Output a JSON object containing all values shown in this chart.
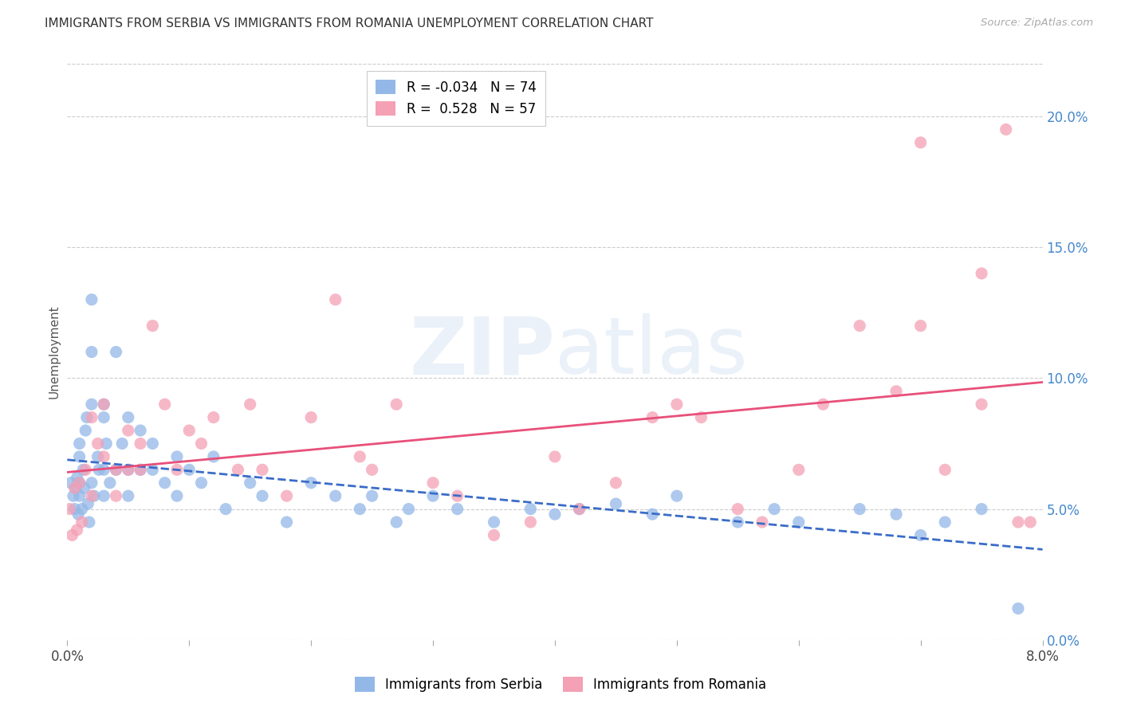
{
  "title": "IMMIGRANTS FROM SERBIA VS IMMIGRANTS FROM ROMANIA UNEMPLOYMENT CORRELATION CHART",
  "source": "Source: ZipAtlas.com",
  "xlabel_label": "Immigrants from Serbia",
  "xlabel_label2": "Immigrants from Romania",
  "ylabel": "Unemployment",
  "serbia_R": -0.034,
  "serbia_N": 74,
  "romania_R": 0.528,
  "romania_N": 57,
  "serbia_color": "#93b8e8",
  "romania_color": "#f4a0b5",
  "serbia_line_color": "#3a6cc8",
  "romania_line_color": "#e8507a",
  "watermark_zip": "ZIP",
  "watermark_atlas": "atlas",
  "background_color": "#ffffff",
  "xlim": [
    0.0,
    0.08
  ],
  "ylim": [
    0.0,
    0.22
  ],
  "y_ticks": [
    0.0,
    0.05,
    0.1,
    0.15,
    0.2
  ],
  "y_tick_labels": [
    "0.0%",
    "5.0%",
    "10.0%",
    "15.0%",
    "20.0%"
  ],
  "x_tick_labels_left": "0.0%",
  "x_tick_labels_right": "8.0%",
  "serbia_scatter_x": [
    0.0003,
    0.0005,
    0.0006,
    0.0007,
    0.0008,
    0.0009,
    0.001,
    0.001,
    0.001,
    0.001,
    0.0012,
    0.0013,
    0.0014,
    0.0015,
    0.0016,
    0.0017,
    0.0018,
    0.002,
    0.002,
    0.002,
    0.002,
    0.0022,
    0.0025,
    0.0026,
    0.003,
    0.003,
    0.003,
    0.003,
    0.0032,
    0.0035,
    0.004,
    0.004,
    0.0045,
    0.005,
    0.005,
    0.005,
    0.006,
    0.006,
    0.007,
    0.007,
    0.008,
    0.009,
    0.009,
    0.01,
    0.011,
    0.012,
    0.013,
    0.015,
    0.016,
    0.018,
    0.02,
    0.022,
    0.024,
    0.025,
    0.027,
    0.028,
    0.03,
    0.032,
    0.035,
    0.038,
    0.04,
    0.042,
    0.045,
    0.048,
    0.05,
    0.055,
    0.058,
    0.06,
    0.065,
    0.068,
    0.07,
    0.072,
    0.075,
    0.078
  ],
  "serbia_scatter_y": [
    0.06,
    0.055,
    0.05,
    0.058,
    0.062,
    0.048,
    0.055,
    0.06,
    0.07,
    0.075,
    0.05,
    0.065,
    0.058,
    0.08,
    0.085,
    0.052,
    0.045,
    0.13,
    0.11,
    0.09,
    0.06,
    0.055,
    0.07,
    0.065,
    0.09,
    0.085,
    0.065,
    0.055,
    0.075,
    0.06,
    0.11,
    0.065,
    0.075,
    0.085,
    0.065,
    0.055,
    0.08,
    0.065,
    0.075,
    0.065,
    0.06,
    0.07,
    0.055,
    0.065,
    0.06,
    0.07,
    0.05,
    0.06,
    0.055,
    0.045,
    0.06,
    0.055,
    0.05,
    0.055,
    0.045,
    0.05,
    0.055,
    0.05,
    0.045,
    0.05,
    0.048,
    0.05,
    0.052,
    0.048,
    0.055,
    0.045,
    0.05,
    0.045,
    0.05,
    0.048,
    0.04,
    0.045,
    0.05,
    0.012
  ],
  "romania_scatter_x": [
    0.0002,
    0.0004,
    0.0006,
    0.0008,
    0.001,
    0.0012,
    0.0015,
    0.002,
    0.002,
    0.0025,
    0.003,
    0.003,
    0.004,
    0.004,
    0.005,
    0.005,
    0.006,
    0.006,
    0.007,
    0.008,
    0.009,
    0.01,
    0.011,
    0.012,
    0.014,
    0.015,
    0.016,
    0.018,
    0.02,
    0.022,
    0.024,
    0.025,
    0.027,
    0.03,
    0.032,
    0.035,
    0.038,
    0.04,
    0.042,
    0.045,
    0.048,
    0.05,
    0.052,
    0.055,
    0.057,
    0.06,
    0.062,
    0.065,
    0.068,
    0.07,
    0.072,
    0.075,
    0.077,
    0.079,
    0.07,
    0.075,
    0.078
  ],
  "romania_scatter_y": [
    0.05,
    0.04,
    0.058,
    0.042,
    0.06,
    0.045,
    0.065,
    0.085,
    0.055,
    0.075,
    0.09,
    0.07,
    0.065,
    0.055,
    0.08,
    0.065,
    0.075,
    0.065,
    0.12,
    0.09,
    0.065,
    0.08,
    0.075,
    0.085,
    0.065,
    0.09,
    0.065,
    0.055,
    0.085,
    0.13,
    0.07,
    0.065,
    0.09,
    0.06,
    0.055,
    0.04,
    0.045,
    0.07,
    0.05,
    0.06,
    0.085,
    0.09,
    0.085,
    0.05,
    0.045,
    0.065,
    0.09,
    0.12,
    0.095,
    0.12,
    0.065,
    0.09,
    0.195,
    0.045,
    0.19,
    0.14,
    0.045
  ]
}
